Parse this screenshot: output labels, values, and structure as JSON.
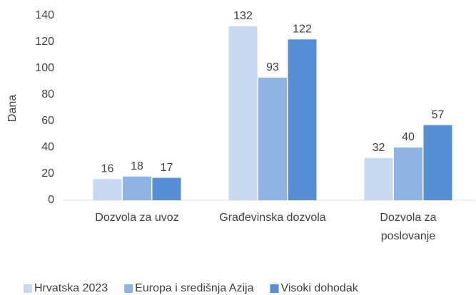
{
  "chart_data": {
    "type": "bar",
    "y_label": "Dana",
    "categories": [
      "Dozvola za uvoz",
      "Građevinska dozvola",
      "Dozvola za poslovanje"
    ],
    "series": [
      {
        "name": "Hrvatska 2023",
        "color": "#c6d9f0",
        "values": [
          16,
          132,
          32
        ]
      },
      {
        "name": "Europa i središnja Azija",
        "color": "#8eb4e3",
        "values": [
          18,
          93,
          40
        ]
      },
      {
        "name": "Visoki dohodak",
        "color": "#558ed5",
        "values": [
          17,
          122,
          57
        ]
      }
    ],
    "ylim": [
      0,
      140
    ],
    "yticks": [
      0,
      20,
      40,
      60,
      80,
      100,
      120,
      140
    ],
    "grid": false,
    "legend": "bottom"
  }
}
